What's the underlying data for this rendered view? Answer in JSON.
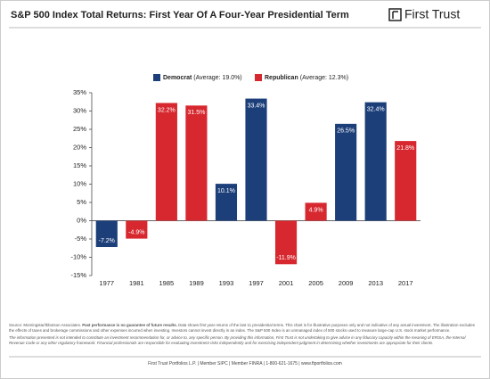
{
  "header": {
    "title": "S&P 500 Index Total Returns: First Year Of A Four-Year Presidential Term",
    "logo": "First Trust"
  },
  "chart_data": {
    "type": "bar",
    "categories": [
      "1977",
      "1981",
      "1985",
      "1989",
      "1993",
      "1997",
      "2001",
      "2005",
      "2009",
      "2013",
      "2017"
    ],
    "series": [
      {
        "name": "Democrat",
        "legend_note": "(Average: 19.0%)",
        "color": "#1c3f7a",
        "values": [
          -7.2,
          null,
          null,
          null,
          10.1,
          33.4,
          null,
          null,
          26.5,
          32.4,
          null
        ],
        "value_labels": [
          "-7.2%",
          null,
          null,
          null,
          "10.1%",
          "33.4%",
          null,
          null,
          "26.5%",
          "32.4%",
          null
        ]
      },
      {
        "name": "Republican",
        "legend_note": "(Average: 12.3%)",
        "color": "#d7282f",
        "values": [
          null,
          -4.9,
          32.2,
          31.5,
          null,
          null,
          -11.9,
          4.9,
          null,
          null,
          21.8
        ],
        "value_labels": [
          null,
          "-4.9%",
          "32.2%",
          "31.5%",
          null,
          null,
          "-11.9%",
          "4.9%",
          null,
          null,
          "21.8%"
        ]
      }
    ],
    "ylim": [
      -15,
      35
    ],
    "yticks": [
      {
        "value": -15,
        "label": "-15%"
      },
      {
        "value": -10,
        "label": "-10%"
      },
      {
        "value": -5,
        "label": "-5%"
      },
      {
        "value": 0,
        "label": "0%"
      },
      {
        "value": 5,
        "label": "5%"
      },
      {
        "value": 10,
        "label": "10%"
      },
      {
        "value": 15,
        "label": "15%"
      },
      {
        "value": 20,
        "label": "20%"
      },
      {
        "value": 25,
        "label": "25%"
      },
      {
        "value": 30,
        "label": "30%"
      },
      {
        "value": 35,
        "label": "35%"
      }
    ],
    "grid": false
  },
  "notes": {
    "source_start": "Source: Morningstar/Ibbotson Associates. ",
    "source_bold": "Past performance is no guarantee of future results.",
    "source_end": " Data shows first year returns of the last 11 presidential terms. This chart is for illustrative purposes only and not indicative of any actual investment. The illustration excludes the effects of taxes and brokerage commissions and other expenses incurred when investing. Investors cannot invest directly in an index. The S&P 500 Index is an unmanaged index of 500 stocks used to measure large-cap U.S. stock market performance.",
    "disclaimer": "The information presented is not intended to constitute an investment recommendation for, or advice to, any specific person. By providing this information, First Trust is not undertaking to give advice in any fiduciary capacity within the meaning of ERISA, the Internal Revenue Code or any other regulatory framework. Financial professionals are responsible for evaluating investment risks independently and for exercising independent judgment in determining whether investments are appropriate for their clients.",
    "footer": "First Trust Portfolios L.P. | Member SIPC | Member FINRA | 1-800-621-1675 | www.ftportfolios.com"
  }
}
